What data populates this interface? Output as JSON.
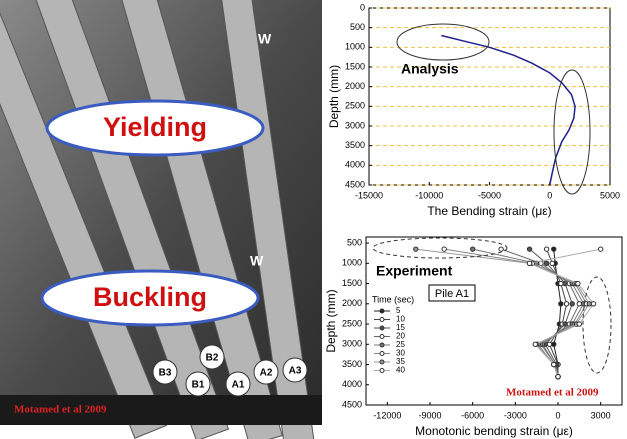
{
  "photo": {
    "labels": {
      "yielding": "Yielding",
      "buckling": "Buckling",
      "credit": "Motamed et al 2009",
      "w_upper": "W",
      "w_lower": "W",
      "piles": [
        "B3",
        "B1",
        "B2",
        "A1",
        "A2",
        "A3"
      ]
    }
  },
  "chart_data": [
    {
      "type": "line",
      "annotation": "Analysis",
      "x_label": "The Bending strain (με)",
      "y_label": "Depth (mm)",
      "xlim": [
        -15000,
        5000
      ],
      "xticks": [
        -15000,
        -10000,
        -5000,
        0,
        5000
      ],
      "ylim": [
        4500,
        0
      ],
      "yticks": [
        0,
        500,
        1000,
        1500,
        2000,
        2500,
        3000,
        3500,
        4000,
        4500
      ],
      "grid": true,
      "grid_color": "#f0c040",
      "series": [
        {
          "color": "#1f1f8f",
          "x": [
            -9000,
            -7000,
            -5000,
            -3000,
            -1500,
            0,
            1000,
            1800,
            2100,
            2000,
            1600,
            1000,
            500,
            200,
            0
          ],
          "y": [
            700,
            850,
            1000,
            1200,
            1400,
            1650,
            1900,
            2200,
            2500,
            2800,
            3100,
            3400,
            3800,
            4200,
            4500
          ]
        }
      ]
    },
    {
      "type": "line",
      "annotation": "Experiment",
      "legend_title": "Time (sec)",
      "box_label": "Pile A1",
      "credit": "Motamed et al  2009",
      "x_label": "Monotonic bending strain (με)",
      "y_label": "Depth (mm)",
      "xlim": [
        -13500,
        4500
      ],
      "xticks": [
        -12000,
        -9000,
        -6000,
        -3000,
        0,
        3000
      ],
      "ylim": [
        4500,
        350
      ],
      "yticks": [
        500,
        1000,
        1500,
        2000,
        2500,
        3000,
        3500,
        4000,
        4500
      ],
      "y": [
        650,
        1000,
        1500,
        2000,
        2500,
        3000,
        3500,
        3800
      ],
      "series": [
        {
          "name": "5",
          "color": "#222",
          "x": [
            -300,
            -200,
            0,
            200,
            100,
            -300,
            0,
            0
          ]
        },
        {
          "name": "10",
          "color": "#444",
          "x": [
            -800,
            -400,
            200,
            600,
            300,
            -600,
            0,
            0
          ]
        },
        {
          "name": "15",
          "color": "#555",
          "x": [
            -2000,
            -800,
            500,
            1000,
            500,
            -900,
            -100,
            0
          ]
        },
        {
          "name": "20",
          "color": "#666",
          "x": [
            -4000,
            -1200,
            800,
            1500,
            800,
            -1100,
            -200,
            0
          ]
        },
        {
          "name": "25",
          "color": "#777",
          "x": [
            -6000,
            -1500,
            1000,
            1800,
            1000,
            -1200,
            -200,
            0
          ]
        },
        {
          "name": "30",
          "color": "#888",
          "x": [
            -8000,
            -1800,
            1200,
            2000,
            1200,
            -1400,
            -300,
            0
          ]
        },
        {
          "name": "35",
          "color": "#999",
          "x": [
            -10000,
            -2000,
            1300,
            2200,
            1300,
            -1500,
            -300,
            0
          ]
        },
        {
          "name": "40",
          "color": "#aaa",
          "x": [
            3000,
            -2000,
            1400,
            2500,
            1500,
            -1600,
            -300,
            0
          ]
        }
      ]
    }
  ]
}
